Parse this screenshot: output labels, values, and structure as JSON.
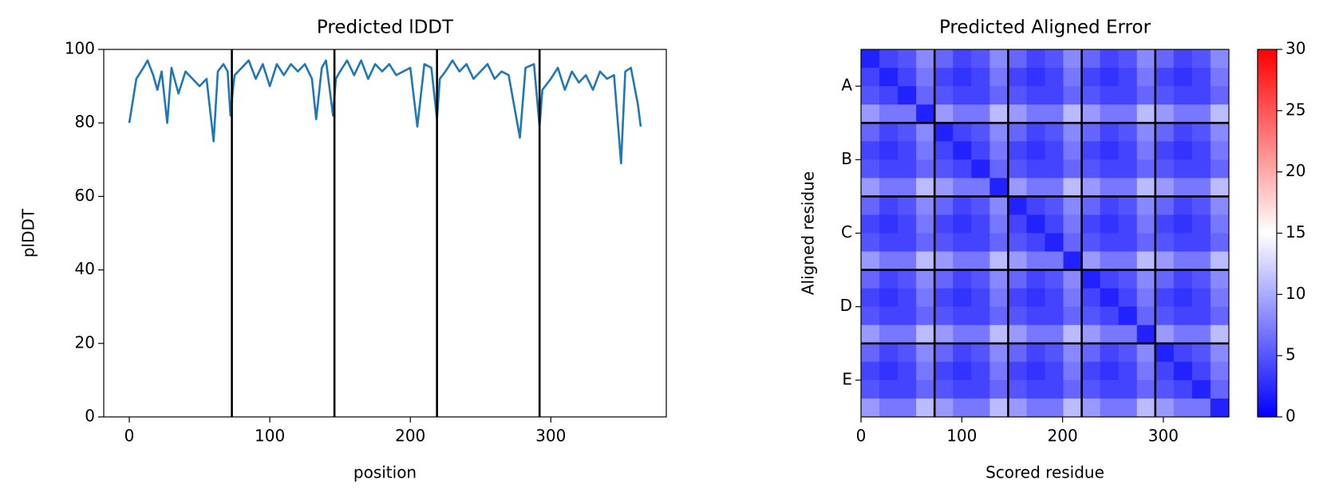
{
  "chart_data": [
    {
      "type": "line",
      "title": "Predicted lDDT",
      "xlabel": "position",
      "ylabel": "plDDT",
      "xlim": [
        -18.2,
        382.2
      ],
      "ylim": [
        0,
        100
      ],
      "xticks": [
        0,
        100,
        200,
        300
      ],
      "yticks": [
        0,
        20,
        40,
        60,
        80,
        100
      ],
      "vlines": [
        73,
        146,
        219,
        292
      ],
      "vline_color": "#000000",
      "series": [
        {
          "color": "#1f77b4",
          "x": [
            0,
            5,
            10,
            13,
            17,
            20,
            23,
            27,
            30,
            35,
            40,
            45,
            50,
            55,
            60,
            63,
            67,
            70,
            72,
            74,
            75,
            80,
            85,
            90,
            95,
            100,
            105,
            110,
            115,
            120,
            125,
            130,
            133,
            137,
            140,
            145,
            147,
            150,
            155,
            160,
            165,
            170,
            175,
            180,
            185,
            190,
            200,
            205,
            210,
            215,
            219,
            221,
            225,
            230,
            235,
            240,
            245,
            250,
            255,
            260,
            265,
            270,
            278,
            282,
            288,
            292,
            294,
            300,
            305,
            310,
            315,
            320,
            325,
            330,
            335,
            340,
            345,
            350,
            353,
            357,
            362,
            364
          ],
          "values": [
            80,
            92,
            95,
            97,
            93,
            89,
            94,
            80,
            95,
            88,
            94,
            92,
            90,
            92,
            75,
            94,
            96,
            94,
            82,
            90,
            93,
            95,
            97,
            92,
            96,
            90,
            96,
            93,
            96,
            94,
            96,
            92,
            81,
            95,
            97,
            82,
            92,
            94,
            97,
            93,
            97,
            92,
            96,
            94,
            96,
            93,
            95,
            79,
            96,
            95,
            81,
            92,
            94,
            97,
            94,
            96,
            92,
            94,
            96,
            92,
            94,
            93,
            76,
            95,
            96,
            79,
            89,
            92,
            95,
            89,
            94,
            91,
            93,
            89,
            94,
            92,
            93,
            69,
            94,
            95,
            85,
            79
          ]
        }
      ]
    },
    {
      "type": "heatmap",
      "title": "Predicted Aligned Error",
      "xlabel": "Scored residue",
      "ylabel": "Aligned residue",
      "xlim": [
        0,
        365
      ],
      "ylim": [
        365,
        0
      ],
      "xticks": [
        0,
        100,
        200,
        300
      ],
      "yticks": [
        {
          "value": 36.5,
          "label": "A"
        },
        {
          "value": 109.5,
          "label": "B"
        },
        {
          "value": 182.5,
          "label": "C"
        },
        {
          "value": 255.5,
          "label": "D"
        },
        {
          "value": 328.5,
          "label": "E"
        }
      ],
      "lines": [
        73,
        146,
        219,
        292
      ],
      "line_color": "#000000",
      "colorscale": [
        "#0000ff",
        "#ffffff",
        "#ff0000"
      ],
      "zlim": [
        0,
        30
      ],
      "zticks": [
        0,
        5,
        10,
        15,
        20,
        25,
        30
      ],
      "z": [
        [
          2,
          4,
          5,
          8,
          6,
          4,
          5,
          8,
          6,
          4,
          5,
          8,
          6,
          4,
          5,
          8,
          6,
          4,
          5,
          8
        ],
        [
          4,
          2,
          4,
          7,
          4,
          3,
          4,
          7,
          4,
          3,
          4,
          7,
          4,
          3,
          4,
          7,
          4,
          3,
          4,
          7
        ],
        [
          5,
          4,
          2,
          6,
          5,
          4,
          4,
          6,
          5,
          4,
          4,
          6,
          5,
          4,
          4,
          6,
          5,
          4,
          4,
          6
        ],
        [
          9,
          7,
          7,
          2,
          9,
          7,
          7,
          11,
          9,
          7,
          7,
          11,
          9,
          7,
          7,
          11,
          9,
          7,
          7,
          11
        ],
        [
          6,
          4,
          5,
          8,
          2,
          4,
          5,
          8,
          6,
          4,
          5,
          8,
          6,
          4,
          5,
          8,
          6,
          4,
          5,
          8
        ],
        [
          4,
          3,
          4,
          7,
          4,
          2,
          4,
          7,
          4,
          3,
          4,
          7,
          4,
          3,
          4,
          7,
          4,
          3,
          4,
          7
        ],
        [
          5,
          4,
          4,
          6,
          5,
          4,
          2,
          6,
          5,
          4,
          4,
          6,
          5,
          4,
          4,
          6,
          5,
          4,
          4,
          6
        ],
        [
          9,
          7,
          7,
          11,
          9,
          7,
          7,
          2,
          9,
          7,
          7,
          11,
          9,
          7,
          7,
          11,
          9,
          7,
          7,
          11
        ],
        [
          6,
          4,
          5,
          8,
          6,
          4,
          5,
          8,
          2,
          4,
          5,
          8,
          6,
          4,
          5,
          8,
          6,
          4,
          5,
          8
        ],
        [
          4,
          3,
          4,
          7,
          4,
          3,
          4,
          7,
          4,
          2,
          4,
          7,
          4,
          3,
          4,
          7,
          4,
          3,
          4,
          7
        ],
        [
          5,
          4,
          4,
          6,
          5,
          4,
          4,
          6,
          5,
          4,
          2,
          6,
          5,
          4,
          4,
          6,
          5,
          4,
          4,
          6
        ],
        [
          9,
          7,
          7,
          11,
          9,
          7,
          7,
          11,
          9,
          7,
          7,
          2,
          9,
          7,
          7,
          11,
          9,
          7,
          7,
          11
        ],
        [
          6,
          4,
          5,
          8,
          6,
          4,
          5,
          8,
          6,
          4,
          5,
          8,
          2,
          4,
          5,
          8,
          6,
          4,
          5,
          8
        ],
        [
          4,
          3,
          4,
          7,
          4,
          3,
          4,
          7,
          4,
          3,
          4,
          7,
          4,
          2,
          4,
          7,
          4,
          3,
          4,
          7
        ],
        [
          5,
          4,
          4,
          6,
          5,
          4,
          4,
          6,
          5,
          4,
          4,
          6,
          5,
          4,
          2,
          6,
          5,
          4,
          4,
          6
        ],
        [
          9,
          7,
          7,
          11,
          9,
          7,
          7,
          11,
          9,
          7,
          7,
          11,
          9,
          7,
          7,
          2,
          9,
          7,
          7,
          11
        ],
        [
          6,
          4,
          5,
          8,
          6,
          4,
          5,
          8,
          6,
          4,
          5,
          8,
          6,
          4,
          5,
          8,
          2,
          4,
          5,
          8
        ],
        [
          4,
          3,
          4,
          7,
          4,
          3,
          4,
          7,
          4,
          3,
          4,
          7,
          4,
          3,
          4,
          7,
          4,
          2,
          4,
          7
        ],
        [
          5,
          4,
          4,
          6,
          5,
          4,
          4,
          6,
          5,
          4,
          4,
          6,
          5,
          4,
          4,
          6,
          5,
          4,
          2,
          6
        ],
        [
          9,
          7,
          7,
          11,
          9,
          7,
          7,
          11,
          9,
          7,
          7,
          11,
          9,
          7,
          7,
          11,
          9,
          7,
          7,
          2
        ]
      ]
    }
  ]
}
